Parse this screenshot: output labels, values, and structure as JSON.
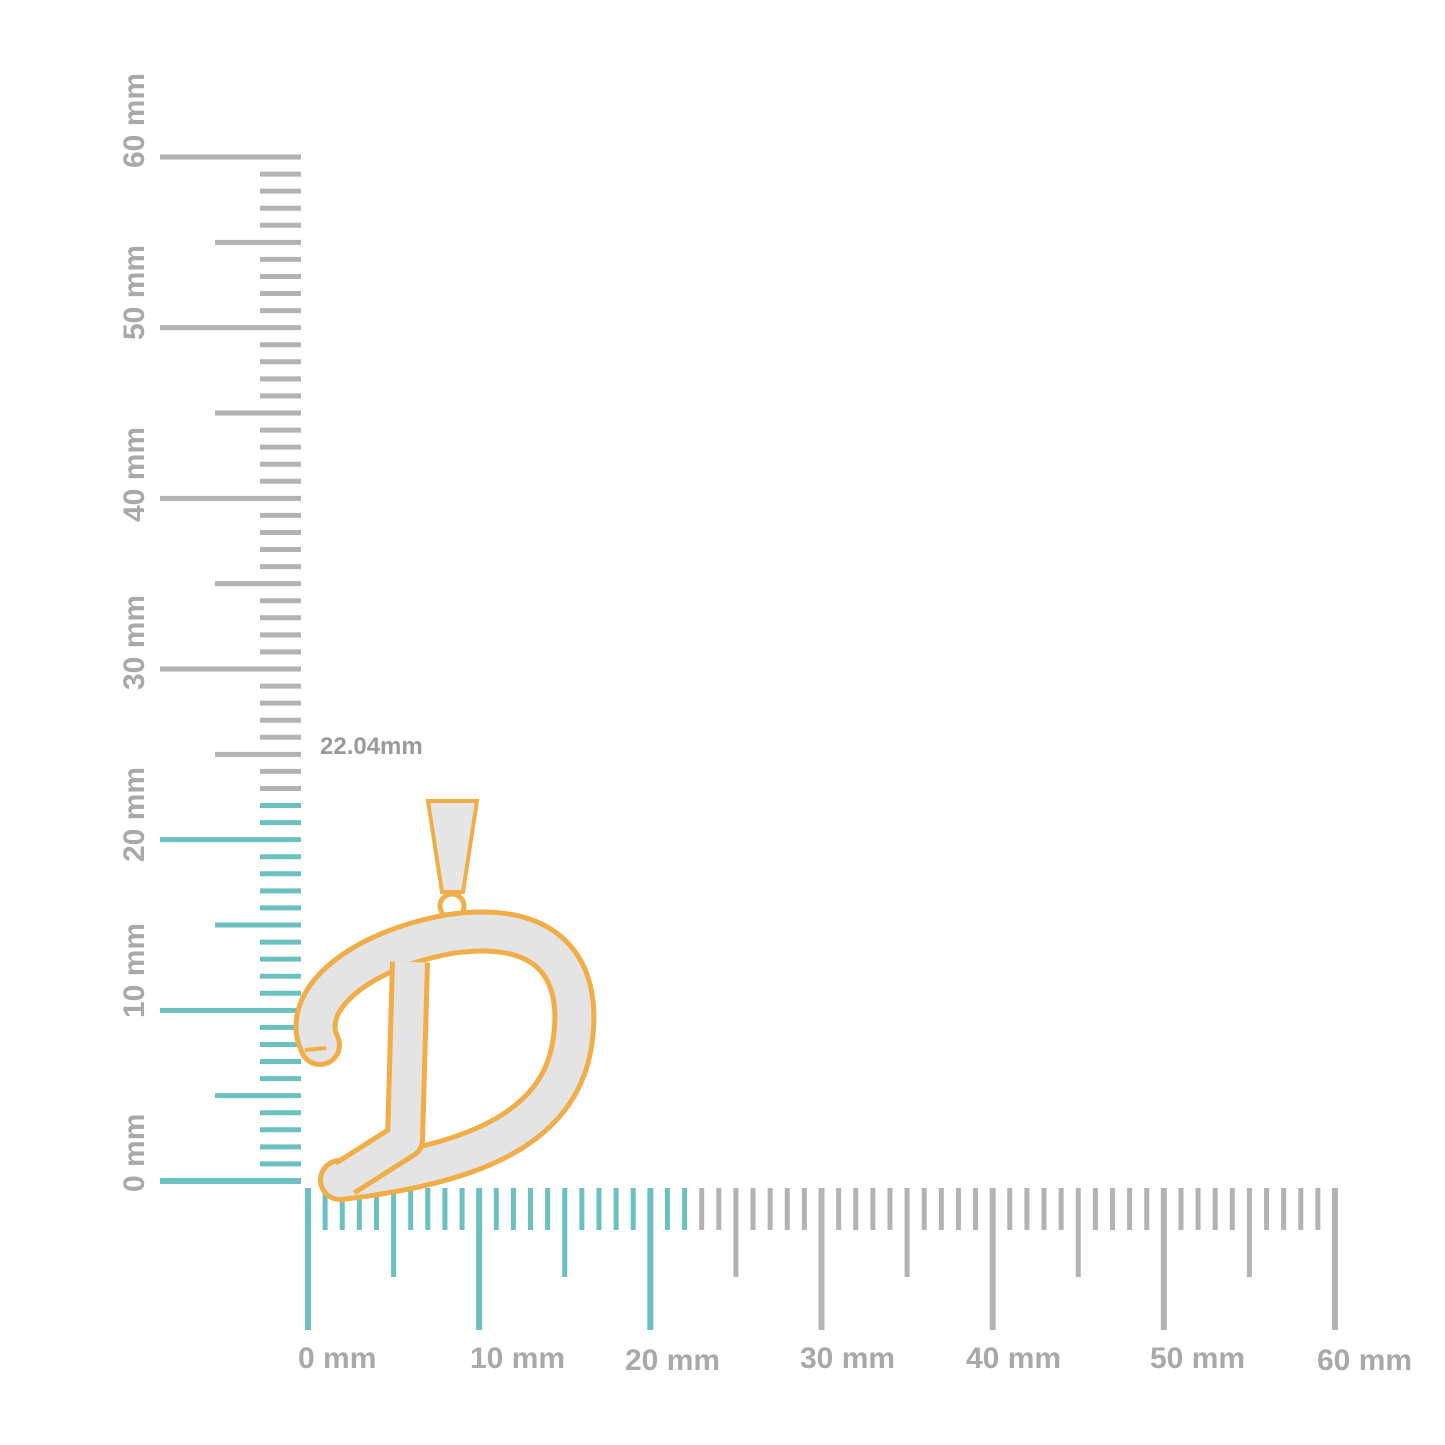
{
  "measurement": "22.04mm",
  "measured_height_mm": 22.04,
  "vertical_ruler": {
    "labels": [
      "0 mm",
      "10 mm",
      "20 mm",
      "30 mm",
      "40 mm",
      "50 mm",
      "60 mm"
    ],
    "max_mm": 60
  },
  "horizontal_ruler": {
    "labels": [
      "0 mm",
      "10 mm",
      "20 mm",
      "30 mm",
      "40 mm",
      "50 mm",
      "60 mm"
    ],
    "max_mm": 60
  },
  "colors": {
    "highlight": "#6cc0bf",
    "tick": "#b3b3b3",
    "label": "#a9a9a9",
    "gold": "#f2b24a",
    "pave": "#e4e4e4"
  }
}
